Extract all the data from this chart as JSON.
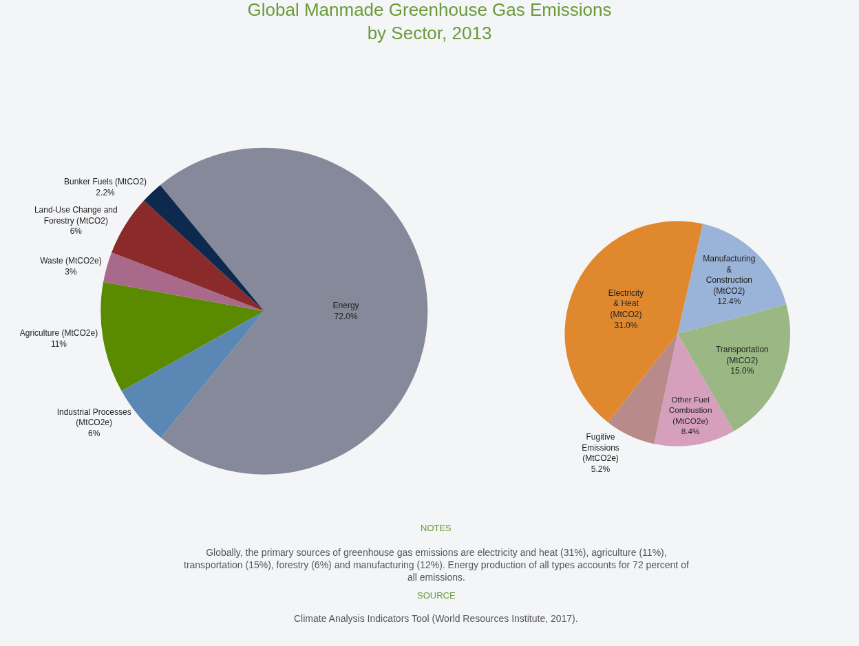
{
  "chart_data": [
    {
      "type": "pie",
      "title": "Global Manmade Greenhouse Gas Emissions\nby Sector, 2013",
      "categories": [
        "Energy",
        "Industrial Processes (MtCO2e)",
        "Agriculture (MtCO2e)",
        "Waste (MtCO2e)",
        "Land-Use Change and Forestry (MtCO2)",
        "Bunker Fuels (MtCO2)"
      ],
      "values": [
        72.0,
        6,
        11,
        3,
        6,
        2.2
      ],
      "value_labels": [
        "72.0%",
        "6%",
        "11%",
        "3%",
        "6%",
        "2.2%"
      ],
      "colors": [
        "#858999",
        "#5b87b5",
        "#5a8a00",
        "#a8698a",
        "#8b2a2a",
        "#0d2a4e"
      ],
      "annotations": [
        "NOTES",
        "Globally, the primary sources of greenhouse gas emissions are electricity and heat (31%), agriculture (11%), transportation (15%), forestry (6%) and manufacturing (12%). Energy production of all types accounts for 72 percent of all emissions.",
        "SOURCE",
        "Climate Analysis Indicators Tool (World Resources Institute, 2017)."
      ]
    },
    {
      "type": "pie",
      "categories": [
        "Manufacturing & Construction (MtCO2)",
        "Transportation (MtCO2)",
        "Other Fuel Combustion (MtCO2e)",
        "Fugitive Emissions (MtCO2e)",
        "Electricity & Heat (MtCO2)"
      ],
      "values": [
        12.4,
        15.0,
        8.4,
        5.2,
        31.0
      ],
      "value_labels": [
        "12.4%",
        "15.0%",
        "8.4%",
        "5.2%",
        "31.0%"
      ],
      "colors": [
        "#9ab3d8",
        "#9bb884",
        "#d6a0bd",
        "#b88a8a",
        "#e0882e"
      ]
    }
  ]
}
